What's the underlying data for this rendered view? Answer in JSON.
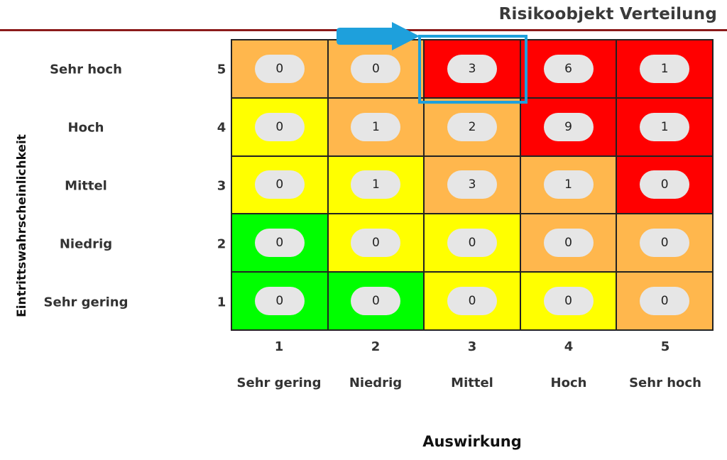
{
  "header": {
    "title": "Risikoobjekt Verteilung"
  },
  "axes": {
    "y_label": "Eintrittswahrscheinlichkeit",
    "x_label": "Auswirkung"
  },
  "rows": [
    {
      "label": "Sehr hoch",
      "num": "5"
    },
    {
      "label": "Hoch",
      "num": "4"
    },
    {
      "label": "Mittel",
      "num": "3"
    },
    {
      "label": "Niedrig",
      "num": "2"
    },
    {
      "label": "Sehr gering",
      "num": "1"
    }
  ],
  "columns": [
    {
      "label": "Sehr gering",
      "num": "1"
    },
    {
      "label": "Niedrig",
      "num": "2"
    },
    {
      "label": "Mittel",
      "num": "3"
    },
    {
      "label": "Hoch",
      "num": "4"
    },
    {
      "label": "Sehr hoch",
      "num": "5"
    }
  ],
  "matrix": {
    "values": [
      [
        "0",
        "0",
        "3",
        "6",
        "1"
      ],
      [
        "0",
        "1",
        "2",
        "9",
        "1"
      ],
      [
        "0",
        "1",
        "3",
        "1",
        "0"
      ],
      [
        "0",
        "0",
        "0",
        "0",
        "0"
      ],
      [
        "0",
        "0",
        "0",
        "0",
        "0"
      ]
    ],
    "levels": [
      [
        "orange",
        "orange",
        "red",
        "red",
        "red"
      ],
      [
        "yellow",
        "orange",
        "orange",
        "red",
        "red"
      ],
      [
        "yellow",
        "yellow",
        "orange",
        "orange",
        "red"
      ],
      [
        "green",
        "yellow",
        "yellow",
        "orange",
        "orange"
      ],
      [
        "green",
        "green",
        "yellow",
        "yellow",
        "orange"
      ]
    ]
  },
  "colors": {
    "green": "#00ff00",
    "yellow": "#ffff00",
    "orange": "#ffb74d",
    "red": "#ff0000",
    "highlight": "#1ea0dc",
    "title_rule": "#8b1a1a"
  },
  "highlight": {
    "row": 0,
    "col": 2,
    "icon": "arrow-right-icon"
  }
}
